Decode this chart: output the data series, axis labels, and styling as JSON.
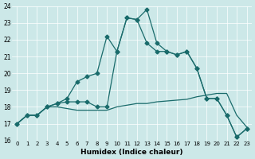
{
  "xlabel": "Humidex (Indice chaleur)",
  "xlim": [
    -0.5,
    23.5
  ],
  "ylim": [
    16,
    24
  ],
  "yticks": [
    16,
    17,
    18,
    19,
    20,
    21,
    22,
    23,
    24
  ],
  "xticks": [
    0,
    1,
    2,
    3,
    4,
    5,
    6,
    7,
    8,
    9,
    10,
    11,
    12,
    13,
    14,
    15,
    16,
    17,
    18,
    19,
    20,
    21,
    22,
    23
  ],
  "bg_color": "#cce8e8",
  "line_color": "#1a6b6b",
  "line1_x": [
    0,
    1,
    2,
    3,
    4,
    5,
    6,
    7,
    8,
    9,
    10,
    11,
    12,
    13,
    14,
    15,
    16,
    17,
    18,
    19,
    20,
    21,
    22,
    23
  ],
  "line1_y": [
    17.0,
    17.5,
    17.5,
    18.0,
    18.2,
    18.5,
    19.5,
    19.8,
    20.0,
    22.2,
    21.3,
    23.3,
    23.2,
    23.8,
    21.8,
    21.3,
    21.1,
    21.3,
    20.3,
    18.5,
    18.5,
    17.5,
    16.2,
    16.7
  ],
  "line2_x": [
    0,
    1,
    2,
    3,
    4,
    5,
    6,
    7,
    8,
    9,
    10,
    11,
    12,
    13,
    14,
    15,
    16,
    17,
    18,
    19,
    20,
    21,
    22,
    23
  ],
  "line2_y": [
    17.0,
    17.5,
    17.5,
    18.0,
    18.2,
    18.3,
    18.3,
    18.3,
    18.0,
    18.0,
    21.3,
    23.3,
    23.2,
    21.8,
    21.3,
    21.3,
    21.1,
    21.3,
    20.3,
    18.5,
    18.5,
    17.5,
    16.2,
    16.7
  ],
  "line3_x": [
    0,
    1,
    2,
    3,
    4,
    5,
    6,
    7,
    8,
    9,
    10,
    11,
    12,
    13,
    14,
    15,
    16,
    17,
    18,
    19,
    20,
    21,
    22,
    23
  ],
  "line3_y": [
    17.0,
    17.5,
    17.5,
    18.0,
    18.0,
    17.9,
    17.8,
    17.8,
    17.8,
    17.8,
    18.0,
    18.1,
    18.2,
    18.2,
    18.3,
    18.35,
    18.4,
    18.45,
    18.6,
    18.7,
    18.8,
    18.8,
    17.5,
    16.8
  ],
  "marker_size": 2.5
}
